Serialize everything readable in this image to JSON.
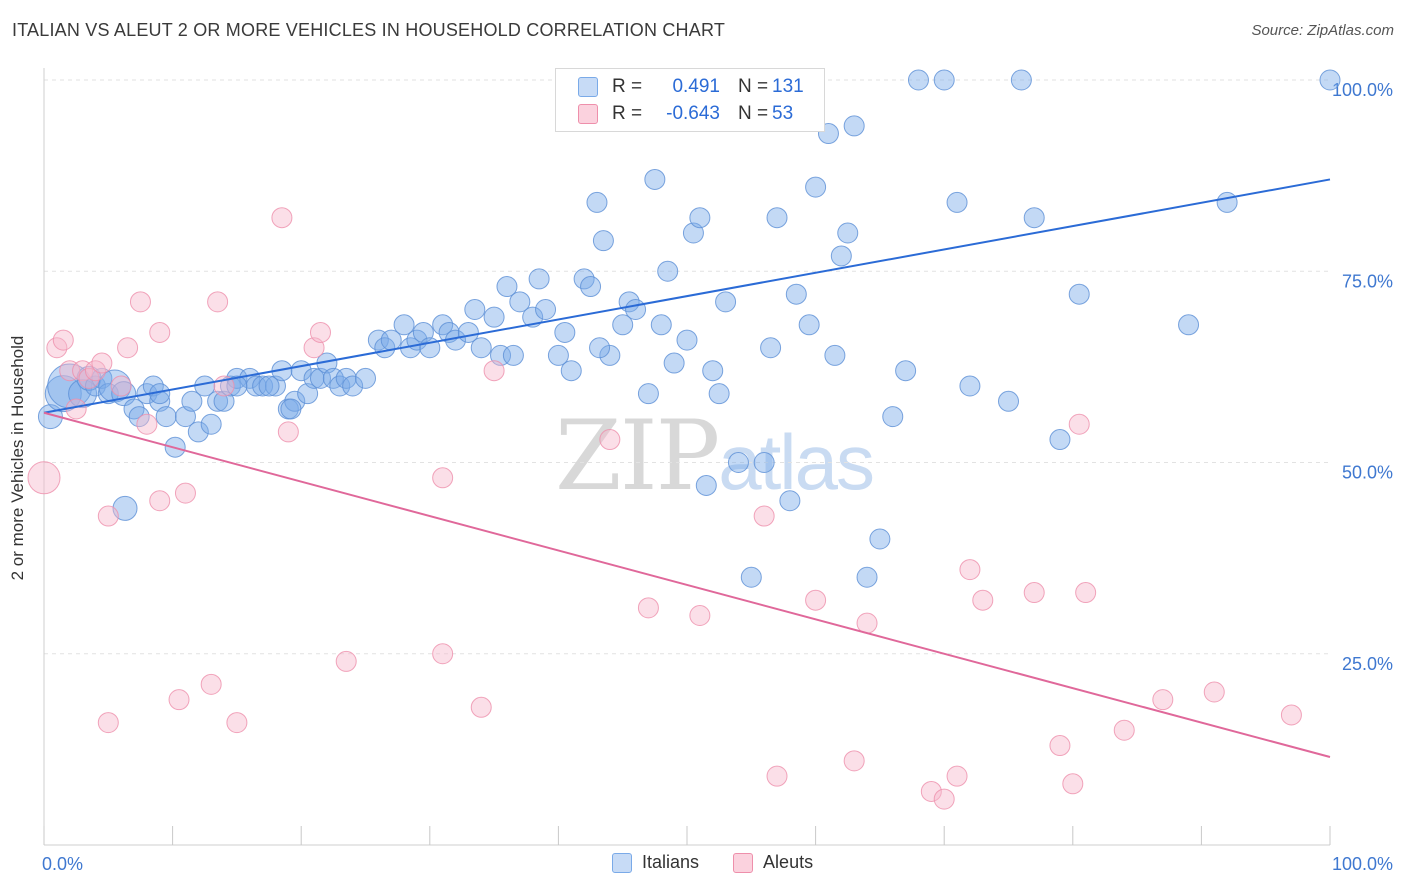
{
  "title": "ITALIAN VS ALEUT 2 OR MORE VEHICLES IN HOUSEHOLD CORRELATION CHART",
  "source": "Source: ZipAtlas.com",
  "watermark": {
    "zip": "ZIP",
    "atlas": "atlas"
  },
  "legend": {
    "r_label": "R =",
    "n_label": "N =",
    "rows": [
      {
        "r": "0.491",
        "n": "131",
        "color": "#a8c8f0"
      },
      {
        "r": "-0.643",
        "n": "53",
        "color": "#f7b8cb"
      }
    ]
  },
  "bottom_legend": [
    {
      "label": "Italians",
      "color": "#a8c8f0"
    },
    {
      "label": "Aleuts",
      "color": "#f7b8cb"
    }
  ],
  "chart_data": {
    "type": "scatter",
    "ylabel": "2 or more Vehicles in Household",
    "x_tick_labels": [
      "0.0%",
      "100.0%"
    ],
    "y_tick_labels": [
      "25.0%",
      "50.0%",
      "75.0%",
      "100.0%"
    ],
    "xlim": [
      0,
      100
    ],
    "ylim": [
      0,
      100
    ],
    "y_ticks": [
      25,
      50,
      75,
      100
    ],
    "grid": true,
    "series": [
      {
        "name": "Italians",
        "color": "#7aaae8",
        "stroke": "#5b8fd6",
        "trend": {
          "x": [
            0,
            100
          ],
          "y": [
            56.5,
            87
          ]
        },
        "trend_color": "#2b6bd6",
        "points": [
          [
            0.5,
            56,
            12
          ],
          [
            1.5,
            59,
            18
          ],
          [
            2,
            60,
            22
          ],
          [
            3,
            59,
            14
          ],
          [
            3.5,
            61,
            12
          ],
          [
            4,
            60,
            10
          ],
          [
            4.5,
            61,
            10
          ],
          [
            5,
            59,
            10
          ],
          [
            5.5,
            60,
            16
          ],
          [
            6.2,
            59,
            12
          ],
          [
            6.3,
            44,
            12
          ],
          [
            7,
            57,
            10
          ],
          [
            7.4,
            56,
            10
          ],
          [
            8,
            59,
            10
          ],
          [
            8.5,
            60,
            10
          ],
          [
            9,
            58,
            10
          ],
          [
            9.5,
            56,
            10
          ],
          [
            10.2,
            52,
            10
          ],
          [
            11,
            56,
            10
          ],
          [
            11.5,
            58,
            10
          ],
          [
            12,
            54,
            10
          ],
          [
            12.5,
            60,
            10
          ],
          [
            13,
            55,
            10
          ],
          [
            13.5,
            58,
            10
          ],
          [
            14,
            58,
            10
          ],
          [
            14.5,
            60,
            10
          ],
          [
            15,
            61,
            10
          ],
          [
            16,
            61,
            10
          ],
          [
            16.5,
            60,
            10
          ],
          [
            17,
            60,
            10
          ],
          [
            18,
            60,
            10
          ],
          [
            18.5,
            62,
            10
          ],
          [
            19,
            57,
            10
          ],
          [
            19.5,
            58,
            10
          ],
          [
            20,
            62,
            10
          ],
          [
            20.5,
            59,
            10
          ],
          [
            21,
            61,
            10
          ],
          [
            21.5,
            61,
            10
          ],
          [
            22,
            63,
            10
          ],
          [
            22.5,
            61,
            10
          ],
          [
            23,
            60,
            10
          ],
          [
            23.5,
            61,
            10
          ],
          [
            24,
            60,
            10
          ],
          [
            25,
            61,
            10
          ],
          [
            26,
            66,
            10
          ],
          [
            26.5,
            65,
            10
          ],
          [
            27,
            66,
            10
          ],
          [
            28,
            68,
            10
          ],
          [
            28.5,
            65,
            10
          ],
          [
            29,
            66,
            10
          ],
          [
            29.5,
            67,
            10
          ],
          [
            30,
            65,
            10
          ],
          [
            31,
            68,
            10
          ],
          [
            31.5,
            67,
            10
          ],
          [
            32,
            66,
            10
          ],
          [
            33,
            67,
            10
          ],
          [
            33.5,
            70,
            10
          ],
          [
            34,
            65,
            10
          ],
          [
            35,
            69,
            10
          ],
          [
            35.5,
            64,
            10
          ],
          [
            36,
            73,
            10
          ],
          [
            36.5,
            64,
            10
          ],
          [
            37,
            71,
            10
          ],
          [
            38,
            69,
            10
          ],
          [
            38.5,
            74,
            10
          ],
          [
            39,
            70,
            10
          ],
          [
            40,
            64,
            10
          ],
          [
            40.5,
            67,
            10
          ],
          [
            41,
            62,
            10
          ],
          [
            42,
            74,
            10
          ],
          [
            42.5,
            73,
            10
          ],
          [
            43,
            84,
            10
          ],
          [
            43.5,
            79,
            10
          ],
          [
            44,
            64,
            10
          ],
          [
            45,
            68,
            10
          ],
          [
            45.5,
            71,
            10
          ],
          [
            46,
            70,
            10
          ],
          [
            47,
            59,
            10
          ],
          [
            47.5,
            87,
            10
          ],
          [
            48,
            68,
            10
          ],
          [
            48.5,
            75,
            10
          ],
          [
            49,
            63,
            10
          ],
          [
            50,
            66,
            10
          ],
          [
            50.5,
            80,
            10
          ],
          [
            51,
            82,
            10
          ],
          [
            51.5,
            47,
            10
          ],
          [
            52,
            62,
            10
          ],
          [
            52.5,
            59,
            10
          ],
          [
            53,
            71,
            10
          ],
          [
            54,
            50,
            10
          ],
          [
            55,
            35,
            10
          ],
          [
            56,
            50,
            10
          ],
          [
            56.5,
            65,
            10
          ],
          [
            57,
            82,
            10
          ],
          [
            58,
            45,
            10
          ],
          [
            58.5,
            72,
            10
          ],
          [
            59,
            100,
            10
          ],
          [
            59.5,
            68,
            10
          ],
          [
            60,
            86,
            10
          ],
          [
            61,
            93,
            10
          ],
          [
            61.5,
            64,
            10
          ],
          [
            62,
            77,
            10
          ],
          [
            62.5,
            80,
            10
          ],
          [
            63,
            94,
            10
          ],
          [
            64,
            35,
            10
          ],
          [
            65,
            40,
            10
          ],
          [
            66,
            56,
            10
          ],
          [
            67,
            62,
            10
          ],
          [
            68,
            100,
            10
          ],
          [
            70,
            100,
            10
          ],
          [
            71,
            84,
            10
          ],
          [
            72,
            60,
            10
          ],
          [
            75,
            58,
            10
          ],
          [
            76,
            100,
            10
          ],
          [
            77,
            82,
            10
          ],
          [
            79,
            53,
            10
          ],
          [
            80.5,
            72,
            10
          ],
          [
            89,
            68,
            10
          ],
          [
            92,
            84,
            10
          ],
          [
            100,
            100,
            10
          ],
          [
            15,
            60,
            10
          ],
          [
            17.5,
            60,
            10
          ],
          [
            9,
            59,
            10
          ],
          [
            19.2,
            57,
            10
          ],
          [
            43.2,
            65,
            10
          ]
        ]
      },
      {
        "name": "Aleuts",
        "color": "#f7b8cb",
        "stroke": "#ee8fab",
        "trend": {
          "x": [
            0,
            100
          ],
          "y": [
            56.5,
            11.5
          ]
        },
        "trend_color": "#e0689a",
        "points": [
          [
            0,
            48,
            16
          ],
          [
            1,
            65,
            10
          ],
          [
            1.5,
            66,
            10
          ],
          [
            2,
            62,
            10
          ],
          [
            2.5,
            57,
            10
          ],
          [
            3,
            62,
            10
          ],
          [
            3.5,
            61,
            10
          ],
          [
            4,
            62,
            10
          ],
          [
            4.5,
            63,
            10
          ],
          [
            5,
            16,
            10
          ],
          [
            5,
            43,
            10
          ],
          [
            6,
            60,
            10
          ],
          [
            6.5,
            65,
            10
          ],
          [
            7.5,
            71,
            10
          ],
          [
            8,
            55,
            10
          ],
          [
            9,
            67,
            10
          ],
          [
            9,
            45,
            10
          ],
          [
            10.5,
            19,
            10
          ],
          [
            11,
            46,
            10
          ],
          [
            13,
            21,
            10
          ],
          [
            13.5,
            71,
            10
          ],
          [
            14,
            60,
            10
          ],
          [
            15,
            16,
            10
          ],
          [
            18.5,
            82,
            10
          ],
          [
            19,
            54,
            10
          ],
          [
            21,
            65,
            10
          ],
          [
            21.5,
            67,
            10
          ],
          [
            23.5,
            24,
            10
          ],
          [
            31,
            48,
            10
          ],
          [
            31,
            25,
            10
          ],
          [
            34,
            18,
            10
          ],
          [
            35,
            62,
            10
          ],
          [
            44,
            53,
            10
          ],
          [
            47,
            31,
            10
          ],
          [
            51,
            30,
            10
          ],
          [
            56,
            43,
            10
          ],
          [
            57,
            9,
            10
          ],
          [
            60,
            32,
            10
          ],
          [
            63,
            11,
            10
          ],
          [
            64,
            29,
            10
          ],
          [
            69,
            7,
            10
          ],
          [
            70,
            6,
            10
          ],
          [
            71,
            9,
            10
          ],
          [
            72,
            36,
            10
          ],
          [
            73,
            32,
            10
          ],
          [
            77,
            33,
            10
          ],
          [
            79,
            13,
            10
          ],
          [
            80,
            8,
            10
          ],
          [
            80.5,
            55,
            10
          ],
          [
            81,
            33,
            10
          ],
          [
            84,
            15,
            10
          ],
          [
            87,
            19,
            10
          ],
          [
            91,
            20,
            10
          ],
          [
            97,
            17,
            10
          ]
        ]
      }
    ]
  }
}
